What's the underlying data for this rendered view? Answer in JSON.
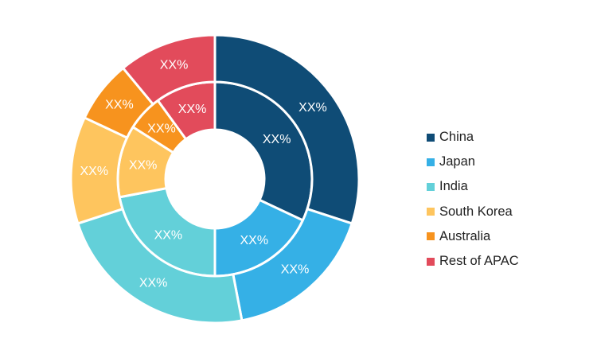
{
  "chart_data": {
    "type": "pie",
    "title": "",
    "rings": [
      {
        "name": "",
        "categories": [
          "China",
          "Japan",
          "India",
          "South Korea",
          "Australia",
          "Rest of APAC"
        ],
        "values": [
          32,
          18,
          22,
          12,
          6,
          10
        ],
        "labels": [
          "XX%",
          "XX%",
          "XX%",
          "XX%",
          "XX%",
          "XX%"
        ]
      },
      {
        "name": "",
        "categories": [
          "China",
          "Japan",
          "India",
          "South Korea",
          "Australia",
          "Rest of APAC"
        ],
        "values": [
          30,
          17,
          23,
          12,
          7,
          11
        ],
        "labels": [
          "XX%",
          "XX%",
          "XX%",
          "XX%",
          "XX%",
          "XX%"
        ]
      }
    ],
    "legend": {
      "placement": "right",
      "entries": [
        "China",
        "Japan",
        "India",
        "South Korea",
        "Australia",
        "Rest of APAC"
      ]
    },
    "colors": [
      "#0f4c76",
      "#35b0e6",
      "#63d0d9",
      "#fec55e",
      "#f7931e",
      "#e24b5b"
    ]
  }
}
